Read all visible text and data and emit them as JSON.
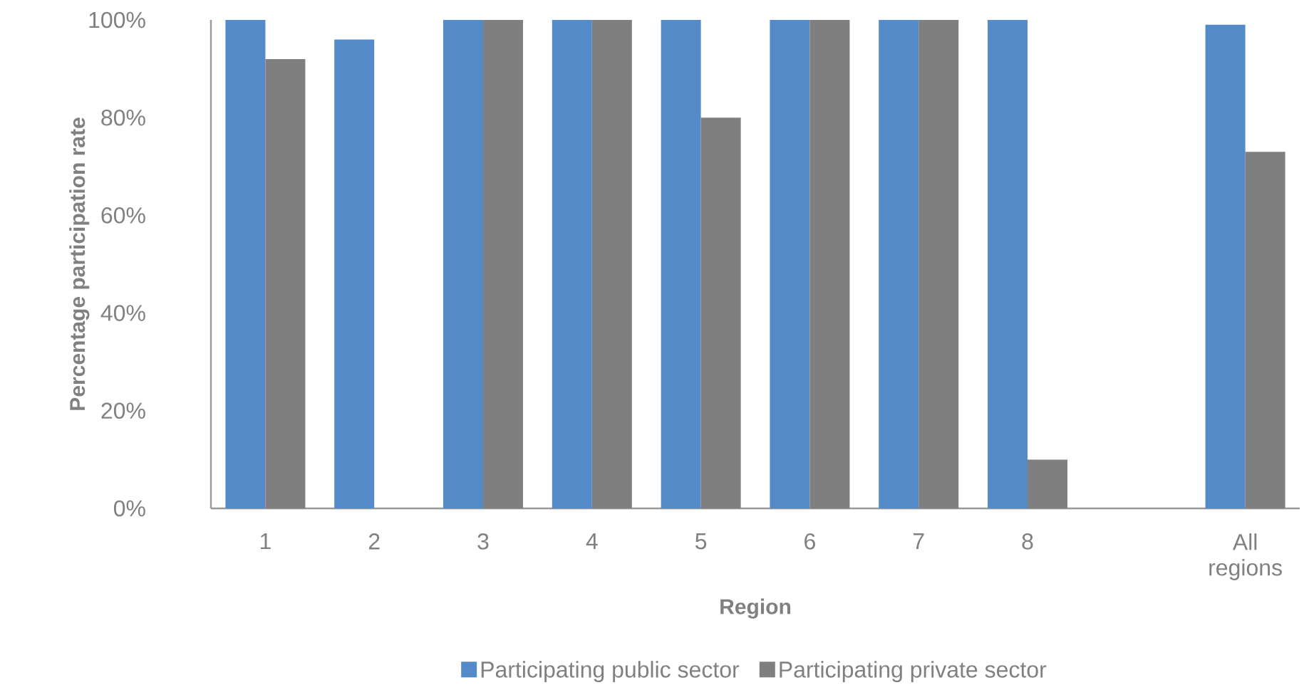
{
  "chart_data": {
    "type": "bar",
    "xlabel": "Region",
    "ylabel": "Percentage participation rate",
    "categories": [
      "1",
      "2",
      "3",
      "4",
      "5",
      "6",
      "7",
      "8",
      null,
      "All regions"
    ],
    "series": [
      {
        "name": "Participating public sector",
        "color": "#558ac9",
        "values": [
          100,
          96,
          100,
          100,
          100,
          100,
          100,
          100,
          null,
          99
        ]
      },
      {
        "name": "Participating private sector",
        "color": "#7f7f80",
        "values": [
          92,
          null,
          100,
          100,
          80,
          100,
          100,
          10,
          null,
          73
        ]
      }
    ],
    "ylim": [
      0,
      100
    ],
    "yticks": [
      {
        "value": 0,
        "label": "0%"
      },
      {
        "value": 20,
        "label": "20%"
      },
      {
        "value": 40,
        "label": "40%"
      },
      {
        "value": 60,
        "label": "60%"
      },
      {
        "value": 80,
        "label": "80%"
      },
      {
        "value": 100,
        "label": "100%"
      }
    ],
    "legend": "bottom"
  }
}
